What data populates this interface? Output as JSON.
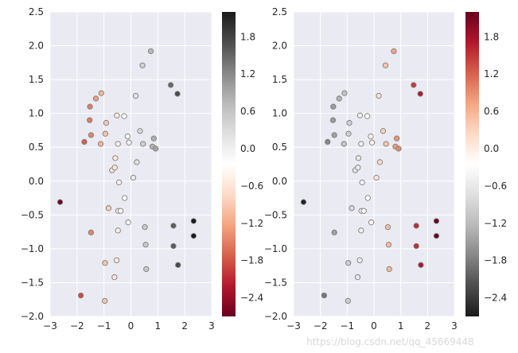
{
  "chart_data": [
    {
      "type": "scatter",
      "title": "",
      "xlabel": "",
      "ylabel": "",
      "xlim": [
        -3,
        3
      ],
      "ylim": [
        -2.0,
        2.5
      ],
      "xticks": [
        "−3",
        "−2",
        "−1",
        "0",
        "1",
        "2",
        "3"
      ],
      "yticks": [
        "−2.0",
        "−1.5",
        "−1.0",
        "−0.5",
        "0.0",
        "0.5",
        "1.0",
        "1.5",
        "2.0",
        "2.5"
      ],
      "colormap": "RdGy",
      "colorbar": {
        "range": [
          -2.7,
          2.2
        ],
        "ticks": [
          "−2.4",
          "−1.8",
          "−1.2",
          "−0.6",
          "0.0",
          "0.6",
          "1.2",
          "1.8"
        ]
      },
      "color_source": "x"
    },
    {
      "type": "scatter",
      "title": "",
      "xlabel": "",
      "ylabel": "",
      "xlim": [
        -3,
        3
      ],
      "ylim": [
        -2.0,
        2.5
      ],
      "xticks": [
        "−3",
        "−2",
        "−1",
        "0",
        "1",
        "2",
        "3"
      ],
      "yticks": [
        "−2.0",
        "−1.5",
        "−1.0",
        "−0.5",
        "0.0",
        "0.5",
        "1.0",
        "1.5",
        "2.0",
        "2.5"
      ],
      "colormap": "RdGy_r",
      "colorbar": {
        "range": [
          -2.7,
          2.2
        ],
        "ticks": [
          "−2.4",
          "−1.8",
          "−1.2",
          "−0.6",
          "0.0",
          "0.6",
          "1.2",
          "1.8"
        ]
      },
      "color_source": "x"
    }
  ],
  "points": [
    {
      "x": -2.63,
      "y": -0.31
    },
    {
      "x": -1.86,
      "y": -1.69
    },
    {
      "x": -1.73,
      "y": 0.58
    },
    {
      "x": -1.52,
      "y": 1.1
    },
    {
      "x": -1.53,
      "y": 0.9
    },
    {
      "x": -1.48,
      "y": 0.68
    },
    {
      "x": -1.48,
      "y": -0.76
    },
    {
      "x": -1.3,
      "y": 1.22
    },
    {
      "x": -1.1,
      "y": 1.3
    },
    {
      "x": -1.12,
      "y": 0.55
    },
    {
      "x": -0.95,
      "y": 0.7
    },
    {
      "x": -0.92,
      "y": 0.86
    },
    {
      "x": -0.96,
      "y": -1.21
    },
    {
      "x": -0.97,
      "y": -1.77
    },
    {
      "x": -0.83,
      "y": -0.4
    },
    {
      "x": -0.7,
      "y": 0.16
    },
    {
      "x": -0.58,
      "y": 0.34
    },
    {
      "x": -0.6,
      "y": 0.2
    },
    {
      "x": -0.52,
      "y": 0.97
    },
    {
      "x": -0.48,
      "y": 0.55
    },
    {
      "x": -0.44,
      "y": -0.02
    },
    {
      "x": -0.48,
      "y": -0.73
    },
    {
      "x": -0.47,
      "y": -0.44
    },
    {
      "x": -0.38,
      "y": -0.44
    },
    {
      "x": -0.53,
      "y": -1.17
    },
    {
      "x": -0.61,
      "y": -1.42
    },
    {
      "x": -0.25,
      "y": 0.96
    },
    {
      "x": -0.23,
      "y": -0.25
    },
    {
      "x": -0.12,
      "y": 0.66
    },
    {
      "x": -0.07,
      "y": 0.57
    },
    {
      "x": -0.1,
      "y": -0.61
    },
    {
      "x": 0.09,
      "y": 0.05
    },
    {
      "x": 0.18,
      "y": 1.26
    },
    {
      "x": 0.22,
      "y": 0.28
    },
    {
      "x": 0.34,
      "y": 0.74
    },
    {
      "x": 0.45,
      "y": 0.55
    },
    {
      "x": 0.43,
      "y": 1.71
    },
    {
      "x": 0.52,
      "y": -0.68
    },
    {
      "x": 0.55,
      "y": -0.94
    },
    {
      "x": 0.57,
      "y": -1.3
    },
    {
      "x": 0.74,
      "y": 1.92
    },
    {
      "x": 0.8,
      "y": 0.51
    },
    {
      "x": 0.85,
      "y": 0.63
    },
    {
      "x": 0.92,
      "y": 0.48
    },
    {
      "x": 1.48,
      "y": 1.42
    },
    {
      "x": 1.58,
      "y": -0.66
    },
    {
      "x": 1.58,
      "y": -0.96
    },
    {
      "x": 1.73,
      "y": 1.29
    },
    {
      "x": 1.75,
      "y": -1.24
    },
    {
      "x": 2.33,
      "y": -0.59
    },
    {
      "x": 2.33,
      "y": -0.81
    }
  ],
  "watermark": "https://blog.csdn.net/qq_45669448"
}
